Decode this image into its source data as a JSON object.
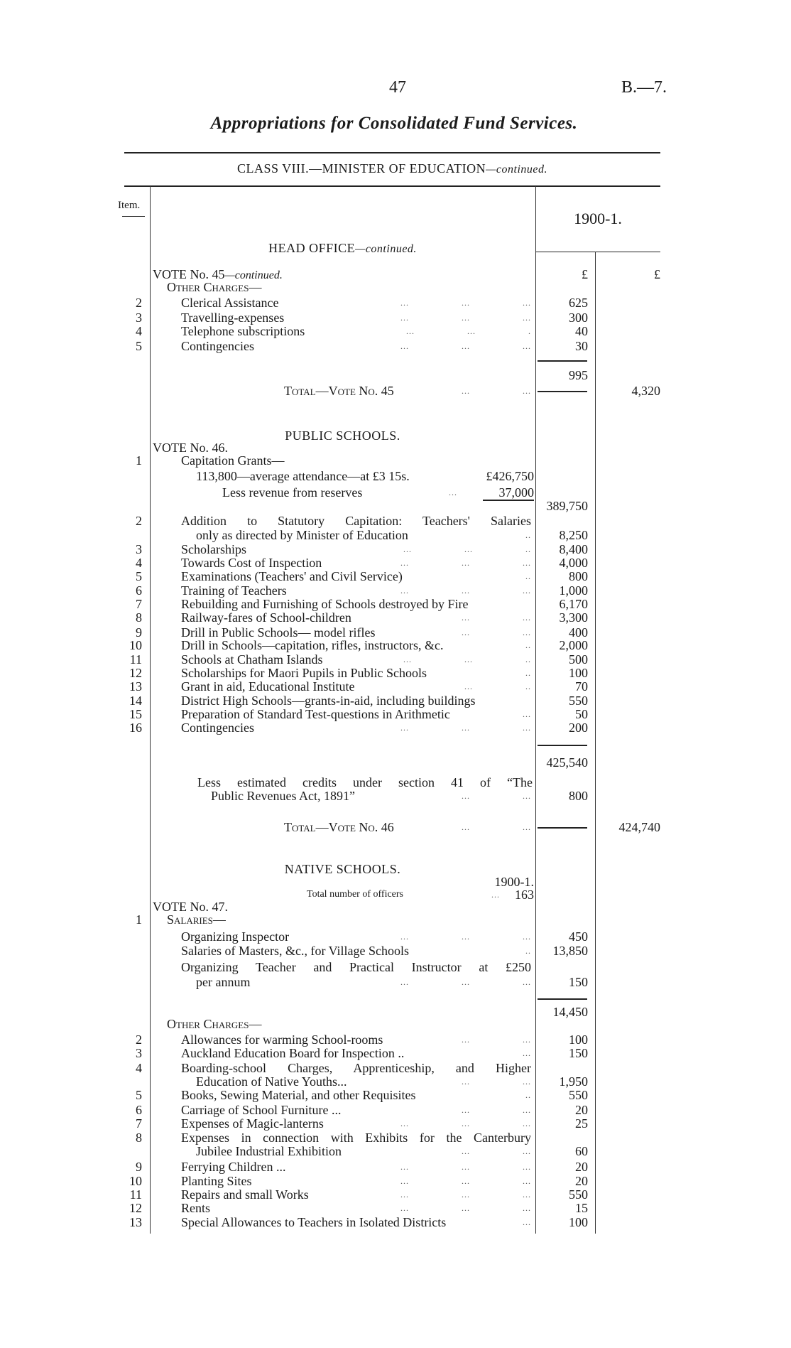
{
  "header": {
    "page_number": "47",
    "doc_ref": "B.—7.",
    "title": "Appropriations for Consolidated Fund Services.",
    "class_heading": "CLASS VIII.—MINISTER OF EDUCATION",
    "class_heading_suffix": "—continued."
  },
  "table": {
    "item_header": "Item.",
    "year_header": "1900-1."
  },
  "rows": [
    {
      "kind": "heading",
      "text": "HEAD OFFICE",
      "suffix": "—continued."
    },
    {
      "kind": "vote",
      "text": "VOTE No. 45",
      "suffix": "—continued.",
      "amount": "£",
      "total": "£"
    },
    {
      "kind": "sub",
      "text": "Other Charges—"
    },
    {
      "kind": "item",
      "item": "2",
      "text": "Clerical Assistance",
      "leaders": "... ... ...",
      "amount": "625"
    },
    {
      "kind": "item",
      "item": "3",
      "text": "Travelling-expenses",
      "leaders": "... ... ...",
      "amount": "300"
    },
    {
      "kind": "item",
      "item": "4",
      "text": "Telephone subscriptions",
      "leaders": "... ... .",
      "amount": "40"
    },
    {
      "kind": "item",
      "item": "5",
      "text": "Contingencies",
      "leaders": "... ... ...",
      "amount": "30"
    },
    {
      "kind": "rule"
    },
    {
      "kind": "subtotal",
      "amount": "995"
    },
    {
      "kind": "total",
      "text": "Total—Vote No. 45",
      "leaders": "... ...",
      "rule": true,
      "total": "4,320"
    },
    {
      "kind": "heading",
      "text": "PUBLIC SCHOOLS."
    },
    {
      "kind": "vote",
      "text": "VOTE No. 46."
    },
    {
      "kind": "item",
      "item": "1",
      "text": "Capitation Grants—"
    },
    {
      "kind": "cont",
      "text": "113,800—average attendance—at £3 15s.",
      "inner": "£426,750"
    },
    {
      "kind": "cont2",
      "text": "Less revenue from reserves",
      "leaders": "...",
      "inner": "37,000"
    },
    {
      "kind": "innerrule",
      "amount": "389,750"
    },
    {
      "kind": "item",
      "item": "2",
      "text": "Addition to Statutory Capitation: Teachers' Salaries",
      "justify": true
    },
    {
      "kind": "cont",
      "text": "only as directed by Minister of Education",
      "leaders": "..",
      "amount": "8,250"
    },
    {
      "kind": "item",
      "item": "3",
      "text": "Scholarships",
      "leaders": "... ... ..",
      "amount": "8,400"
    },
    {
      "kind": "item",
      "item": "4",
      "text": "Towards Cost of Inspection",
      "leaders": "... ... ...",
      "amount": "4,000"
    },
    {
      "kind": "item",
      "item": "5",
      "text": "Examinations (Teachers' and Civil Service)",
      "leaders": "..",
      "amount": "800"
    },
    {
      "kind": "item",
      "item": "6",
      "text": "Training of Teachers",
      "leaders": "... ... ...",
      "amount": "1,000"
    },
    {
      "kind": "item",
      "item": "7",
      "text": "Rebuilding and Furnishing of Schools destroyed by Fire",
      "amount": "6,170"
    },
    {
      "kind": "item",
      "item": "8",
      "text": "Railway-fares of School-children",
      "leaders": "... ...",
      "amount": "3,300"
    },
    {
      "kind": "item",
      "item": "9",
      "text": "Drill in Public Schools— model rifles",
      "leaders": "... ...",
      "amount": "400"
    },
    {
      "kind": "item",
      "item": "10",
      "text": "Drill in Schools—capitation, rifles, instructors, &c.",
      "leaders": "..",
      "amount": "2,000"
    },
    {
      "kind": "item",
      "item": "11",
      "text": "Schools at Chatham Islands",
      "leaders": "... ... ..",
      "amount": "500"
    },
    {
      "kind": "item",
      "item": "12",
      "text": "Scholarships for Maori Pupils in Public Schools",
      "leaders": "..",
      "amount": "100"
    },
    {
      "kind": "item",
      "item": "13",
      "text": "Grant in aid, Educational Institute",
      "leaders": "... ..",
      "amount": "70"
    },
    {
      "kind": "item",
      "item": "14",
      "text": "District High Schools—grants-in-aid, including buildings",
      "amount": "550"
    },
    {
      "kind": "item",
      "item": "15",
      "text": "Preparation of Standard Test-questions in Arithmetic",
      "leaders": "...",
      "amount": "50"
    },
    {
      "kind": "item",
      "item": "16",
      "text": "Contingencies",
      "leaders": "... ... ...",
      "amount": "200"
    },
    {
      "kind": "rule"
    },
    {
      "kind": "subtotal",
      "amount": "425,540"
    },
    {
      "kind": "note",
      "text": "Less estimated credits under section 41 of “The",
      "justify": true
    },
    {
      "kind": "note2",
      "text": "Public Revenues Act, 1891”",
      "leaders": "... ...",
      "amount": "800"
    },
    {
      "kind": "total",
      "text": "Total—Vote No. 46",
      "leaders": "... ...",
      "rule": true,
      "total": "424,740"
    },
    {
      "kind": "heading",
      "text": "NATIVE SCHOOLS."
    },
    {
      "kind": "yearnote",
      "inner": "1900-1."
    },
    {
      "kind": "officers",
      "text": "Total number of officers",
      "leaders": "...",
      "inner": "163"
    },
    {
      "kind": "vote",
      "text": "VOTE No. 47."
    },
    {
      "kind": "sub",
      "item": "1",
      "text": "Salaries—"
    },
    {
      "kind": "item",
      "text": "Organizing Inspector",
      "leaders": "... ... ...",
      "amount": "450"
    },
    {
      "kind": "item",
      "text": "Salaries of Masters, &c., for Village Schools",
      "leaders": "..",
      "amount": "13,850"
    },
    {
      "kind": "item",
      "text": "Organizing Teacher and Practical Instructor at £250",
      "justify": true
    },
    {
      "kind": "cont",
      "text": "per annum",
      "leaders": "... ... ...",
      "amount": "150"
    },
    {
      "kind": "rule"
    },
    {
      "kind": "subtotal",
      "amount": "14,450"
    },
    {
      "kind": "sub",
      "text": "Other Charges—"
    },
    {
      "kind": "item",
      "item": "2",
      "text": "Allowances for warming School-rooms",
      "leaders": "... ...",
      "amount": "100"
    },
    {
      "kind": "item",
      "item": "3",
      "text": "Auckland Education Board for Inspection ..",
      "leaders": "...",
      "amount": "150"
    },
    {
      "kind": "item",
      "item": "4",
      "text": "Boarding-school Charges, Apprenticeship, and Higher",
      "justify": true
    },
    {
      "kind": "cont",
      "text": "Education of Native Youths...",
      "leaders": "... ...",
      "amount": "1,950"
    },
    {
      "kind": "item",
      "item": "5",
      "text": "Books, Sewing Material, and other Requisites",
      "leaders": "..",
      "amount": "550"
    },
    {
      "kind": "item",
      "item": "6",
      "text": "Carriage of School Furniture ...",
      "leaders": "... ...",
      "amount": "20"
    },
    {
      "kind": "item",
      "item": "7",
      "text": "Expenses of Magic-lanterns",
      "leaders": "... ... ...",
      "amount": "25"
    },
    {
      "kind": "item",
      "item": "8",
      "text": "Expenses in connection with Exhibits for the Canterbury",
      "justify": true
    },
    {
      "kind": "cont",
      "text": "Jubilee Industrial Exhibition",
      "leaders": "... ...",
      "amount": "60"
    },
    {
      "kind": "item",
      "item": "9",
      "text": "Ferrying Children ...",
      "leaders": "... ... ...",
      "amount": "20"
    },
    {
      "kind": "item",
      "item": "10",
      "text": "Planting Sites",
      "leaders": "... ... ...",
      "amount": "20"
    },
    {
      "kind": "item",
      "item": "11",
      "text": "Repairs and small Works",
      "leaders": "... ... ...",
      "amount": "550"
    },
    {
      "kind": "item",
      "item": "12",
      "text": "Rents",
      "leaders": "... ... ...",
      "amount": "15"
    },
    {
      "kind": "item",
      "item": "13",
      "text": "Special Allowances to Teachers in Isolated Districts",
      "leaders": "...",
      "amount": "100"
    }
  ]
}
